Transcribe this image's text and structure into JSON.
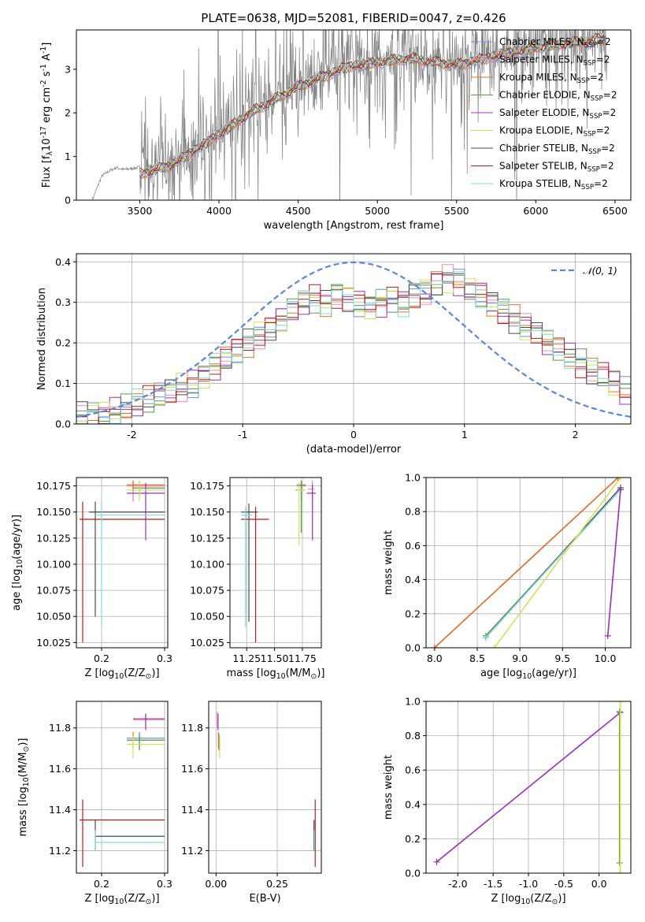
{
  "chart_data": [
    {
      "id": "spectrum",
      "type": "line",
      "title": "PLATE=0638, MJD=52081, FIBERID=0047, z=0.426",
      "xlabel": "wavelength [Angstrom, rest frame]",
      "ylabel": "Flux [f$_\\lambda$10$^{-17}$ erg cm$^{-2}$ s$^{-1}$ A$^{-1}$]",
      "xlim": [
        3100,
        6600
      ],
      "ylim": [
        0,
        3.9
      ],
      "xticks": [
        3500,
        4000,
        4500,
        5000,
        5500,
        6000,
        6500
      ],
      "yticks": [
        0,
        1,
        2,
        3
      ],
      "grid": false,
      "legend_position": "top-right",
      "data_trace": {
        "color": "#808080",
        "note_points": [
          [
            3200,
            0.0
          ],
          [
            3260,
            0.55
          ],
          [
            3300,
            0.65
          ],
          [
            3350,
            0.75
          ],
          [
            3400,
            0.7
          ],
          [
            3500,
            0.75
          ],
          [
            3700,
            0.85
          ],
          [
            4000,
            1.5
          ],
          [
            4200,
            2.0
          ],
          [
            4500,
            2.6
          ],
          [
            4800,
            3.1
          ],
          [
            5000,
            3.2
          ],
          [
            5200,
            3.3
          ],
          [
            5500,
            3.2
          ],
          [
            5800,
            3.4
          ],
          [
            6100,
            3.6
          ],
          [
            6450,
            3.75
          ]
        ]
      },
      "series": [
        {
          "name": "Chabrier MILES, N$_{SSP}$=2",
          "color": "#6b8fd6"
        },
        {
          "name": "Salpeter MILES, N$_{SSP}$=2",
          "color": "#f08bb0"
        },
        {
          "name": "Kroupa MILES, N$_{SSP}$=2",
          "color": "#e0742c"
        },
        {
          "name": "Chabrier ELODIE, N$_{SSP}$=2",
          "color": "#5a9a3e"
        },
        {
          "name": "Salpeter ELODIE, N$_{SSP}$=2",
          "color": "#9b30b8"
        },
        {
          "name": "Kroupa ELODIE, N$_{SSP}$=2",
          "color": "#d4e157"
        },
        {
          "name": "Chabrier STELIB, N$_{SSP}$=2",
          "color": "#4a4a4a"
        },
        {
          "name": "Salpeter STELIB, N$_{SSP}$=2",
          "color": "#b71c1c"
        },
        {
          "name": "Kroupa STELIB, N$_{SSP}$=2",
          "color": "#80d8d8"
        }
      ],
      "model_curve": {
        "x": [
          3500,
          3700,
          4000,
          4200,
          4500,
          4800,
          5000,
          5200,
          5500,
          5800,
          6100,
          6450
        ],
        "y": [
          0.6,
          0.8,
          1.5,
          2.0,
          2.6,
          3.05,
          3.15,
          3.25,
          3.1,
          3.35,
          3.55,
          3.7
        ]
      }
    },
    {
      "id": "residuals",
      "type": "line",
      "xlabel": "(data-model)/error",
      "ylabel": "Normed distribution",
      "xlim": [
        -2.5,
        2.5
      ],
      "ylim": [
        0,
        0.42
      ],
      "xticks": [
        -2,
        -1,
        0,
        1,
        2
      ],
      "yticks": [
        0.0,
        0.1,
        0.2,
        0.3,
        0.4
      ],
      "grid": true,
      "legend_position": "top-right",
      "normal_curve": {
        "name": "$\\mathcal{N}(0,1)$",
        "color": "#5b86de",
        "mu": 0,
        "sigma": 1
      },
      "bin_centers": [
        -2.45,
        -2.35,
        -2.25,
        -2.15,
        -2.05,
        -1.95,
        -1.85,
        -1.75,
        -1.65,
        -1.55,
        -1.45,
        -1.35,
        -1.25,
        -1.15,
        -1.05,
        -0.95,
        -0.85,
        -0.75,
        -0.65,
        -0.55,
        -0.45,
        -0.35,
        -0.25,
        -0.15,
        -0.05,
        0.05,
        0.15,
        0.25,
        0.35,
        0.45,
        0.55,
        0.65,
        0.75,
        0.85,
        0.95,
        1.05,
        1.15,
        1.25,
        1.35,
        1.45,
        1.55,
        1.65,
        1.75,
        1.85,
        1.95,
        2.05,
        2.15,
        2.25,
        2.35,
        2.45
      ],
      "base_hist": [
        0.02,
        0.02,
        0.025,
        0.03,
        0.04,
        0.05,
        0.06,
        0.07,
        0.08,
        0.09,
        0.1,
        0.12,
        0.14,
        0.16,
        0.18,
        0.2,
        0.22,
        0.24,
        0.26,
        0.28,
        0.3,
        0.31,
        0.3,
        0.32,
        0.31,
        0.3,
        0.29,
        0.3,
        0.31,
        0.3,
        0.32,
        0.33,
        0.35,
        0.36,
        0.35,
        0.33,
        0.32,
        0.3,
        0.28,
        0.26,
        0.24,
        0.22,
        0.2,
        0.19,
        0.17,
        0.15,
        0.13,
        0.12,
        0.1,
        0.08
      ]
    },
    {
      "id": "age_vs_Z",
      "type": "scatter",
      "xlabel": "Z [log$_{10}$($Z/Z_\\odot$)]",
      "ylabel": "age  [log$_{10}$($age/yr$)]",
      "xlim": [
        0.16,
        0.305
      ],
      "ylim": [
        10.02,
        10.183
      ],
      "xticks": [
        0.2,
        0.3
      ],
      "yticks": [
        10.025,
        10.05,
        10.075,
        10.1,
        10.125,
        10.15,
        10.175
      ],
      "grid": true,
      "points": [
        {
          "color": "#6b8fd6",
          "x": 0.25,
          "y": 10.175,
          "xerr": [
            0.25,
            0.3
          ],
          "yerr": [
            10.16,
            10.18
          ]
        },
        {
          "color": "#f08bb0",
          "x": 0.25,
          "y": 10.175,
          "xerr": [
            0.24,
            0.3
          ],
          "yerr": [
            10.16,
            10.18
          ]
        },
        {
          "color": "#e0742c",
          "x": 0.25,
          "y": 10.176,
          "xerr": [
            0.24,
            0.3
          ],
          "yerr": [
            10.17,
            10.18
          ]
        },
        {
          "color": "#5a9a3e",
          "x": 0.26,
          "y": 10.173,
          "xerr": [
            0.25,
            0.3
          ],
          "yerr": [
            10.165,
            10.18
          ]
        },
        {
          "color": "#9b30b8",
          "x": 0.27,
          "y": 10.168,
          "xerr": [
            0.24,
            0.3
          ],
          "yerr": [
            10.123,
            10.178
          ]
        },
        {
          "color": "#d4e157",
          "x": 0.26,
          "y": 10.171,
          "xerr": [
            0.24,
            0.3
          ],
          "yerr": [
            10.16,
            10.18
          ]
        },
        {
          "color": "#4a4a4a",
          "x": 0.19,
          "y": 10.15,
          "xerr": [
            0.18,
            0.3
          ],
          "yerr": [
            10.05,
            10.16
          ]
        },
        {
          "color": "#b71c1c",
          "x": 0.17,
          "y": 10.143,
          "xerr": [
            0.165,
            0.3
          ],
          "yerr": [
            10.025,
            10.16
          ]
        },
        {
          "color": "#80d8d8",
          "x": 0.2,
          "y": 10.147,
          "xerr": [
            0.19,
            0.3
          ],
          "yerr": [
            10.04,
            10.16
          ]
        }
      ]
    },
    {
      "id": "age_vs_mass",
      "type": "scatter",
      "xlabel": "mass [log$_{10}$($M/M_\\odot$)]",
      "ylabel": "",
      "xlim": [
        11.1,
        11.92
      ],
      "ylim": [
        10.02,
        10.183
      ],
      "xticks": [
        11.25,
        11.5,
        11.75
      ],
      "yticks": [
        10.025,
        10.05,
        10.075,
        10.1,
        10.125,
        10.15,
        10.175
      ],
      "grid": true,
      "points": [
        {
          "color": "#6b8fd6",
          "x": 11.74,
          "y": 10.175,
          "xerr": [
            11.7,
            11.78
          ],
          "yerr": [
            10.16,
            10.18
          ]
        },
        {
          "color": "#f08bb0",
          "x": 11.84,
          "y": 10.172,
          "xerr": [
            11.8,
            11.86
          ],
          "yerr": [
            10.15,
            10.18
          ]
        },
        {
          "color": "#e0742c",
          "x": 11.74,
          "y": 10.176,
          "xerr": [
            11.7,
            11.78
          ],
          "yerr": [
            10.17,
            10.18
          ]
        },
        {
          "color": "#5a9a3e",
          "x": 11.74,
          "y": 10.171,
          "xerr": [
            11.69,
            11.77
          ],
          "yerr": [
            10.13,
            10.18
          ]
        },
        {
          "color": "#9b30b8",
          "x": 11.84,
          "y": 10.168,
          "xerr": [
            11.79,
            11.87
          ],
          "yerr": [
            10.123,
            10.176
          ]
        },
        {
          "color": "#d4e157",
          "x": 11.72,
          "y": 10.171,
          "xerr": [
            11.7,
            11.77
          ],
          "yerr": [
            10.118,
            10.178
          ]
        },
        {
          "color": "#4a4a4a",
          "x": 11.27,
          "y": 10.15,
          "xerr": [
            11.2,
            11.35
          ],
          "yerr": [
            10.045,
            10.158
          ]
        },
        {
          "color": "#b71c1c",
          "x": 11.33,
          "y": 10.143,
          "xerr": [
            11.2,
            11.45
          ],
          "yerr": [
            10.025,
            10.155
          ]
        },
        {
          "color": "#80d8d8",
          "x": 11.24,
          "y": 10.147,
          "xerr": [
            11.2,
            11.3
          ],
          "yerr": [
            10.04,
            10.155
          ]
        }
      ]
    },
    {
      "id": "mw_vs_age",
      "type": "line",
      "xlabel": "age  [log$_{10}$($age/yr$)]",
      "ylabel": "mass weight",
      "xlim": [
        7.9,
        10.3
      ],
      "ylim": [
        0,
        1
      ],
      "xticks": [
        8.0,
        8.5,
        9.0,
        9.5,
        10.0
      ],
      "yticks": [
        0.0,
        0.2,
        0.4,
        0.6,
        0.8,
        1.0
      ],
      "grid": true,
      "series": [
        {
          "color": "#5a9a3e",
          "x": [
            8.6,
            10.18
          ],
          "y": [
            0.07,
            0.93
          ]
        },
        {
          "color": "#4a4a4a",
          "x": [
            8.6,
            10.18
          ],
          "y": [
            0.06,
            0.94
          ]
        },
        {
          "color": "#80d8d8",
          "x": [
            8.6,
            10.18
          ],
          "y": [
            0.06,
            0.93
          ]
        },
        {
          "color": "#d4e157",
          "x": [
            8.7,
            10.18
          ],
          "y": [
            0.0,
            1.0
          ]
        },
        {
          "color": "#f08bb0",
          "x": [
            8.0,
            10.15
          ],
          "y": [
            0.0,
            1.0
          ]
        },
        {
          "color": "#e0742c",
          "x": [
            8.0,
            10.15
          ],
          "y": [
            0.0,
            1.0
          ]
        },
        {
          "color": "#9b30b8",
          "x": [
            10.03,
            10.18
          ],
          "y": [
            0.07,
            0.93
          ]
        }
      ]
    },
    {
      "id": "mass_vs_Z",
      "type": "scatter",
      "xlabel": "Z [log$_{10}$($Z/Z_\\odot$)]",
      "ylabel": "mass [log$_{10}$($M/M_\\odot$)]",
      "xlim": [
        0.16,
        0.305
      ],
      "ylim": [
        11.09,
        11.93
      ],
      "xticks": [
        0.2,
        0.3
      ],
      "yticks": [
        11.2,
        11.4,
        11.6,
        11.8
      ],
      "grid": true,
      "points": [
        {
          "color": "#6b8fd6",
          "x": 0.26,
          "y": 11.75,
          "xerr": [
            0.24,
            0.3
          ],
          "yerr": [
            11.7,
            11.78
          ]
        },
        {
          "color": "#f08bb0",
          "x": 0.27,
          "y": 11.84,
          "xerr": [
            0.25,
            0.3
          ],
          "yerr": [
            11.8,
            11.87
          ]
        },
        {
          "color": "#e0742c",
          "x": 0.25,
          "y": 11.74,
          "xerr": [
            0.24,
            0.3
          ],
          "yerr": [
            11.7,
            11.78
          ]
        },
        {
          "color": "#5a9a3e",
          "x": 0.26,
          "y": 11.74,
          "xerr": [
            0.24,
            0.3
          ],
          "yerr": [
            11.69,
            11.77
          ]
        },
        {
          "color": "#9b30b8",
          "x": 0.27,
          "y": 11.845,
          "xerr": [
            0.25,
            0.3
          ],
          "yerr": [
            11.79,
            11.87
          ]
        },
        {
          "color": "#d4e157",
          "x": 0.25,
          "y": 11.72,
          "xerr": [
            0.24,
            0.3
          ],
          "yerr": [
            11.65,
            11.76
          ]
        },
        {
          "color": "#4a4a4a",
          "x": 0.19,
          "y": 11.27,
          "xerr": [
            0.19,
            0.3
          ],
          "yerr": [
            11.2,
            11.35
          ]
        },
        {
          "color": "#b71c1c",
          "x": 0.17,
          "y": 11.35,
          "xerr": [
            0.165,
            0.3
          ],
          "yerr": [
            11.12,
            11.45
          ]
        },
        {
          "color": "#80d8d8",
          "x": 0.19,
          "y": 11.24,
          "xerr": [
            0.19,
            0.3
          ],
          "yerr": [
            11.2,
            11.3
          ]
        }
      ]
    },
    {
      "id": "mass_vs_ebv",
      "type": "scatter",
      "xlabel": "E(B-V)",
      "ylabel": "",
      "xlim": [
        -0.03,
        0.43
      ],
      "ylim": [
        11.09,
        11.93
      ],
      "xticks": [
        0.0,
        0.25
      ],
      "xticklabels": [
        "0.00",
        "0.25"
      ],
      "yticks": [
        11.2,
        11.4,
        11.6,
        11.8
      ],
      "grid": true,
      "points": [
        {
          "color": "#f08bb0",
          "x": 0.005,
          "y": 11.84,
          "yerr": [
            11.8,
            11.88
          ]
        },
        {
          "color": "#9b30b8",
          "x": 0.008,
          "y": 11.845,
          "yerr": [
            11.79,
            11.87
          ]
        },
        {
          "color": "#6b8fd6",
          "x": 0.01,
          "y": 11.75,
          "yerr": [
            11.7,
            11.78
          ]
        },
        {
          "color": "#5a9a3e",
          "x": 0.012,
          "y": 11.74,
          "yerr": [
            11.69,
            11.77
          ]
        },
        {
          "color": "#d4e157",
          "x": 0.015,
          "y": 11.72,
          "yerr": [
            11.65,
            11.76
          ]
        },
        {
          "color": "#e0742c",
          "x": 0.01,
          "y": 11.74,
          "yerr": [
            11.7,
            11.78
          ]
        },
        {
          "color": "#4a4a4a",
          "x": 0.4,
          "y": 11.27,
          "yerr": [
            11.2,
            11.35
          ]
        },
        {
          "color": "#b71c1c",
          "x": 0.405,
          "y": 11.35,
          "yerr": [
            11.12,
            11.45
          ]
        },
        {
          "color": "#80d8d8",
          "x": 0.402,
          "y": 11.24,
          "yerr": [
            11.2,
            11.3
          ]
        }
      ]
    },
    {
      "id": "mw_vs_Z",
      "type": "line",
      "xlabel": "Z [log$_{10}$($Z/Z_\\odot$)]",
      "ylabel": "mass weight",
      "xlim": [
        -2.45,
        0.45
      ],
      "ylim": [
        0,
        1
      ],
      "xticks": [
        -2.0,
        -1.5,
        -1.0,
        -0.5,
        0.0
      ],
      "yticks": [
        0.0,
        0.2,
        0.4,
        0.6,
        0.8,
        1.0
      ],
      "grid": true,
      "series": [
        {
          "color": "#9b30b8",
          "x": [
            -2.3,
            0.3
          ],
          "y": [
            0.065,
            0.935
          ]
        },
        {
          "color": "#80d8d8",
          "x": [
            0.3,
            0.3
          ],
          "y": [
            0.0,
            1.0
          ]
        },
        {
          "color": "#5a9a3e",
          "x": [
            0.29,
            0.29
          ],
          "y": [
            0.06,
            0.94
          ]
        },
        {
          "color": "#d4e157",
          "x": [
            0.3,
            0.3
          ],
          "y": [
            0.0,
            1.0
          ]
        }
      ]
    }
  ]
}
